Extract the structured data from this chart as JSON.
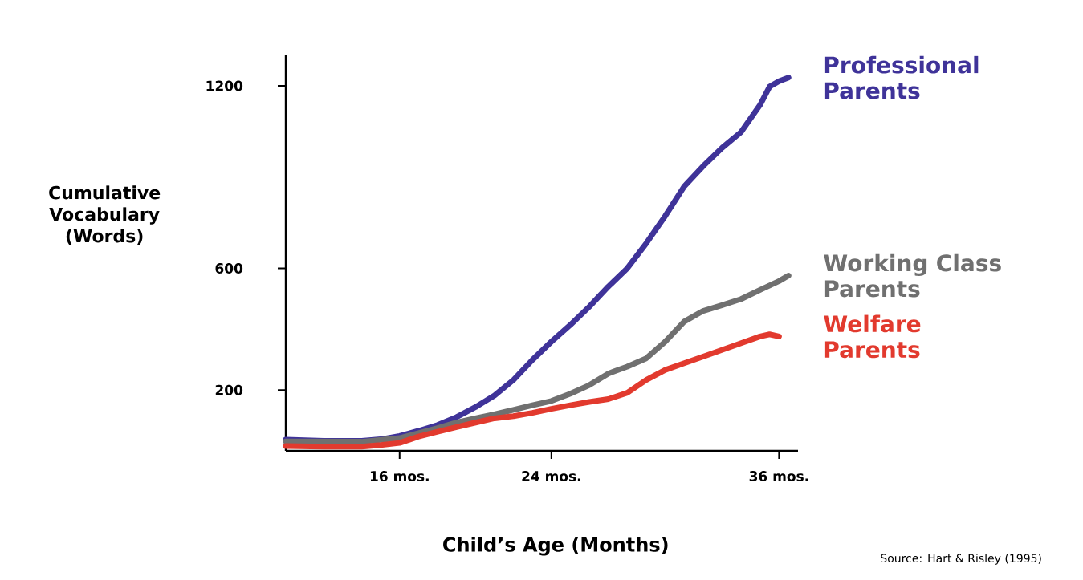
{
  "chart_data": {
    "type": "line",
    "xlabel": "Child’s Age (Months)",
    "ylabel": "Cumulative Vocabulary (Words)",
    "annotations": [
      "Source: Hart & Risley (1995)"
    ],
    "xlim": [
      10,
      37
    ],
    "ylim": [
      0,
      1300
    ],
    "xticks": [
      {
        "value": 16,
        "label": "16 mos."
      },
      {
        "value": 24,
        "label": "24 mos."
      },
      {
        "value": 36,
        "label": "36 mos."
      }
    ],
    "yticks": [
      200,
      600,
      1200
    ],
    "series": [
      {
        "name": "Professional Parents",
        "color": "#3f3399",
        "x": [
          10,
          12,
          14,
          15,
          16,
          17,
          18,
          19,
          20,
          21,
          22,
          23,
          24,
          25,
          26,
          27,
          28,
          29,
          30,
          31,
          32,
          33,
          34,
          35,
          35.5,
          36,
          36.5
        ],
        "values": [
          37,
          33,
          33,
          38,
          49,
          66,
          85,
          111,
          144,
          182,
          233,
          299,
          359,
          414,
          474,
          540,
          600,
          682,
          772,
          869,
          936,
          996,
          1048,
          1137,
          1197,
          1215,
          1227
        ]
      },
      {
        "name": "Working Class Parents",
        "color": "#707070",
        "x": [
          10,
          14,
          16,
          17,
          18,
          19,
          20,
          21,
          22,
          23,
          24,
          25,
          26,
          27,
          28,
          29,
          30,
          31,
          32,
          33,
          34,
          35,
          36,
          36.5
        ],
        "values": [
          31,
          30,
          42,
          58,
          75,
          93,
          107,
          120,
          135,
          150,
          164,
          188,
          216,
          254,
          277,
          304,
          359,
          425,
          460,
          479,
          499,
          529,
          558,
          576
        ]
      },
      {
        "name": "Welfare Parents",
        "color": "#e23a2e",
        "x": [
          10,
          12,
          14,
          15,
          16,
          17,
          18,
          19,
          20,
          21,
          22,
          23,
          24,
          25,
          26,
          27,
          28,
          29,
          30,
          31,
          32,
          33,
          34,
          35,
          35.5,
          36
        ],
        "values": [
          16,
          14,
          14,
          19,
          26,
          47,
          63,
          78,
          93,
          107,
          114,
          125,
          138,
          150,
          161,
          170,
          191,
          233,
          266,
          288,
          310,
          332,
          354,
          376,
          383,
          376
        ]
      }
    ]
  }
}
